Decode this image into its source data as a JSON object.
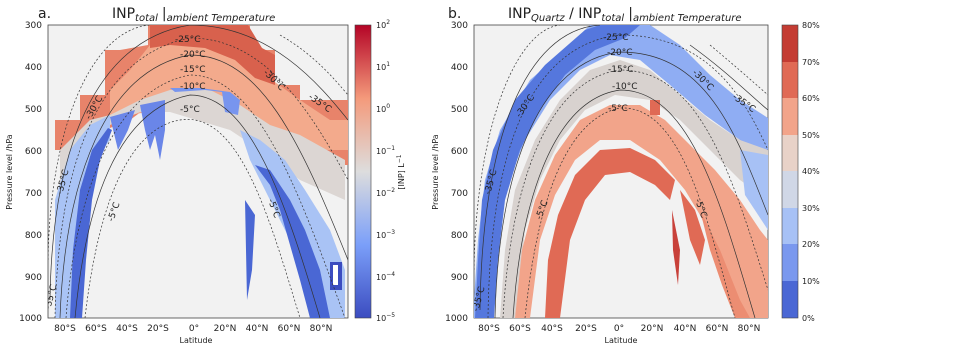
{
  "chart_data": [
    {
      "type": "heatmap",
      "panel_label": "a.",
      "title": {
        "main": "INP",
        "sub": "total",
        "suffix": "|",
        "sub2": "ambient Temperature"
      },
      "xlabel": "Latitude",
      "ylabel": "Pressure level /hPa",
      "xticks": [
        "80°S",
        "60°S",
        "40°S",
        "20°S",
        "0°",
        "20°N",
        "40°N",
        "60°N",
        "80°N"
      ],
      "x_values": [
        -80,
        -60,
        -40,
        -20,
        0,
        20,
        40,
        60,
        80
      ],
      "xlim": [
        -90,
        90
      ],
      "yticks": [
        "300",
        "400",
        "500",
        "600",
        "700",
        "800",
        "900",
        "1000"
      ],
      "y_values": [
        300,
        400,
        500,
        600,
        700,
        800,
        900,
        1000
      ],
      "ylim": [
        1000,
        300
      ],
      "colorbar": {
        "label": "[INP] L",
        "label_exp": "−1",
        "scale": "log",
        "tick_base": "10",
        "tick_exps": [
          "2",
          "1",
          "0",
          "−1",
          "−2",
          "−3",
          "−4",
          "−5"
        ],
        "colormap": "coolwarm"
      },
      "isotherms": [
        {
          "label": "-25°C",
          "t": -25
        },
        {
          "label": "-20°C",
          "t": -20
        },
        {
          "label": "-15°C",
          "t": -15
        },
        {
          "label": "-10°C",
          "t": -10
        },
        {
          "label": "-5°C",
          "t": -5
        },
        {
          "label": "-30°C",
          "t": -30
        },
        {
          "label": "-35°C",
          "t": -35
        }
      ]
    },
    {
      "type": "heatmap",
      "panel_label": "b.",
      "title": {
        "main": "INP",
        "sub": "Quartz",
        "mid": " / INP",
        "sub_b": "total",
        "suffix": "|",
        "sub2": "ambient Temperature"
      },
      "xlabel": "Latitude",
      "ylabel": "Pressure level /hPa",
      "xticks": [
        "80°S",
        "60°S",
        "40°S",
        "20°S",
        "0°",
        "20°N",
        "40°N",
        "60°N",
        "80°N"
      ],
      "x_values": [
        -80,
        -60,
        -40,
        -20,
        0,
        20,
        40,
        60,
        80
      ],
      "xlim": [
        -90,
        90
      ],
      "yticks": [
        "300",
        "400",
        "500",
        "600",
        "700",
        "800",
        "900",
        "1000"
      ],
      "y_values": [
        300,
        400,
        500,
        600,
        700,
        800,
        900,
        1000
      ],
      "ylim": [
        1000,
        300
      ],
      "colorbar": {
        "scale": "linear",
        "ticks": [
          "80%",
          "70%",
          "60%",
          "50%",
          "40%",
          "30%",
          "20%",
          "10%",
          "0%"
        ],
        "colormap": "coolwarm"
      },
      "isotherms": [
        {
          "label": "-25°C",
          "t": -25
        },
        {
          "label": "-20°C",
          "t": -20
        },
        {
          "label": "-15°C",
          "t": -15
        },
        {
          "label": "-10°C",
          "t": -10
        },
        {
          "label": "-5°C",
          "t": -5
        },
        {
          "label": "-30°C",
          "t": -30
        },
        {
          "label": "-35°C",
          "t": -35
        }
      ]
    }
  ]
}
